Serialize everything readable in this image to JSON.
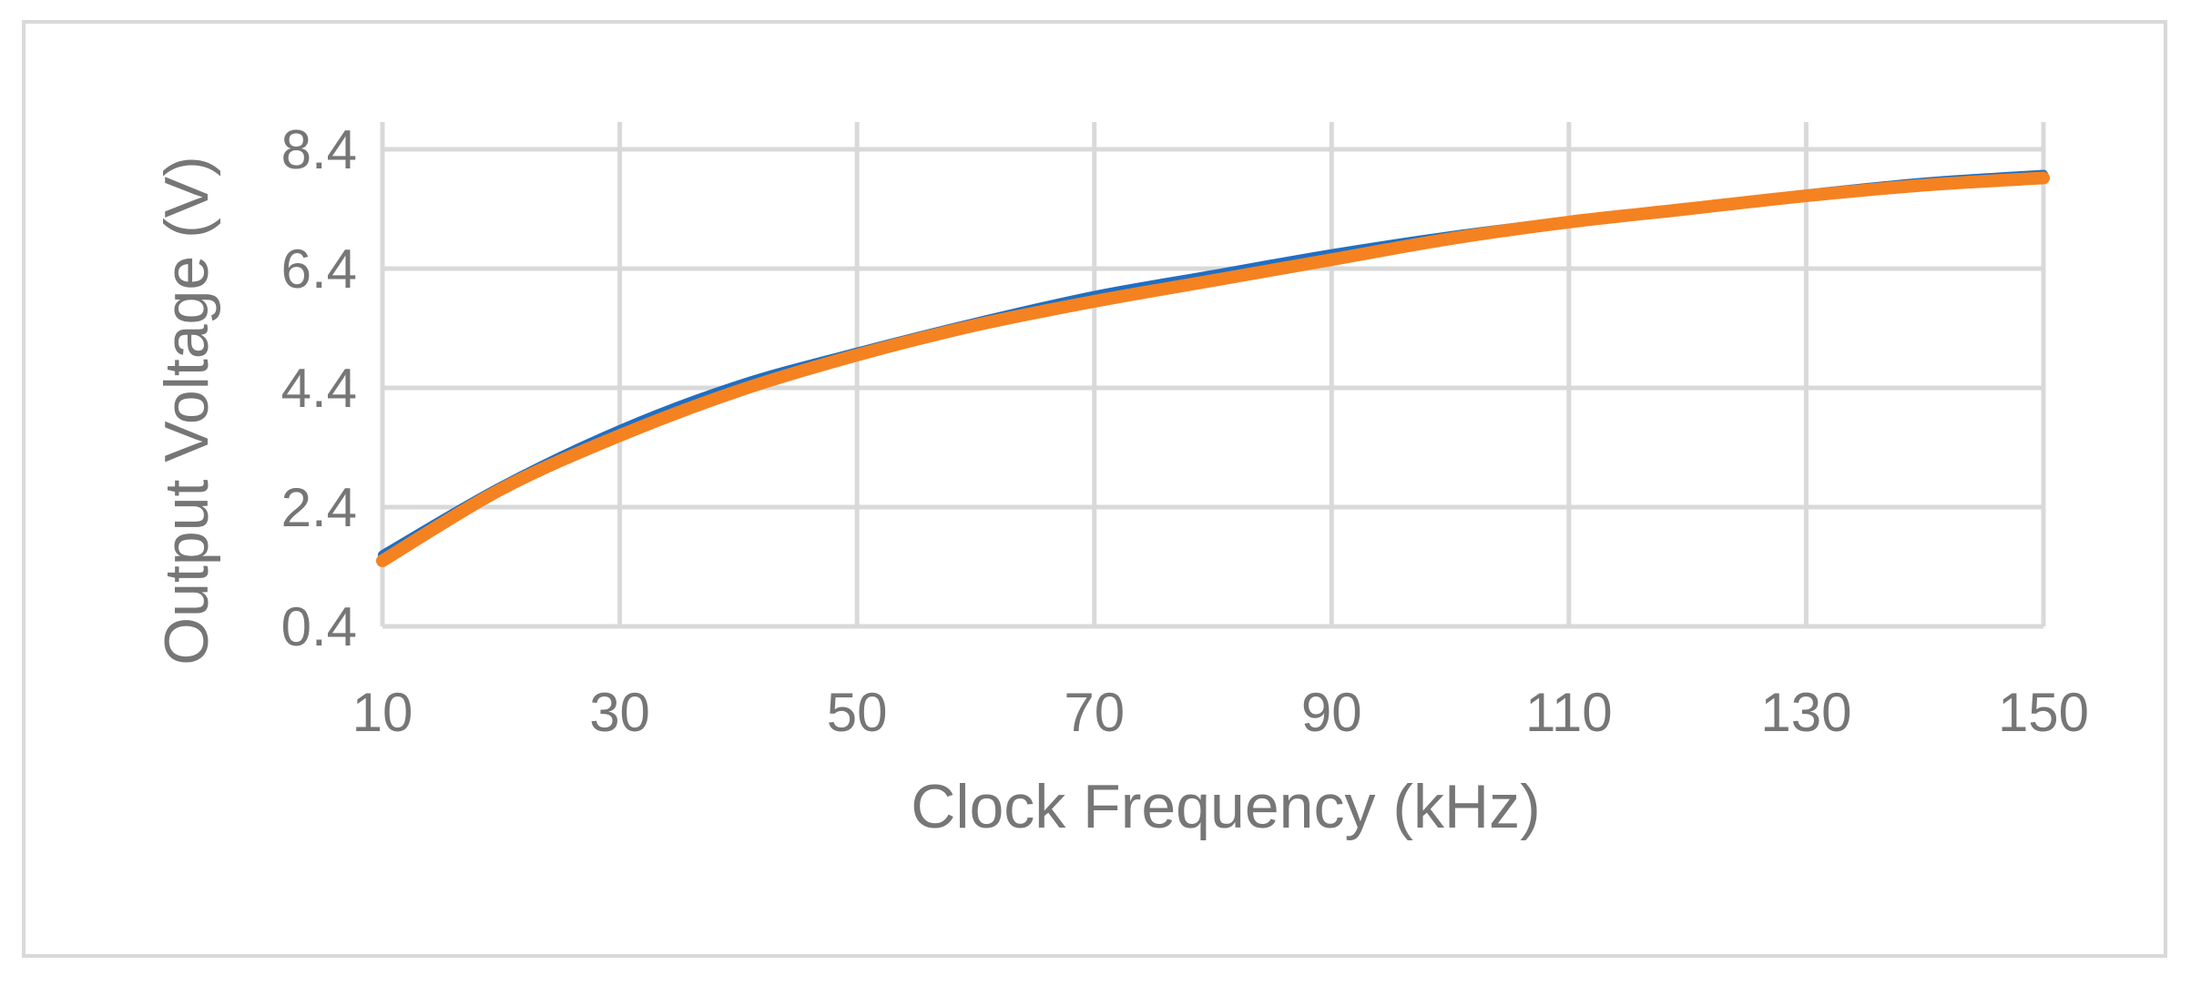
{
  "chart_data": {
    "type": "line",
    "title": "",
    "xlabel": "Clock Frequency (kHz)",
    "ylabel": "Output Voltage (V)",
    "xlim": [
      10,
      150
    ],
    "ylim": [
      0.4,
      8.4
    ],
    "x_ticks": [
      "10",
      "30",
      "50",
      "70",
      "90",
      "110",
      "130",
      "150"
    ],
    "y_ticks": [
      "0.4",
      "2.4",
      "4.4",
      "6.4",
      "8.4"
    ],
    "x_tick_values": [
      10,
      30,
      50,
      70,
      90,
      110,
      130,
      150
    ],
    "y_tick_values": [
      0.4,
      2.4,
      4.4,
      6.4,
      8.4
    ],
    "grid": true,
    "legend": "none",
    "x": [
      10,
      20,
      30,
      40,
      50,
      60,
      70,
      80,
      90,
      100,
      110,
      120,
      130,
      140,
      150
    ],
    "series": [
      {
        "color": "#1f6fc5",
        "values": [
          1.6,
          2.75,
          3.7,
          4.45,
          5.0,
          5.5,
          5.95,
          6.3,
          6.65,
          6.95,
          7.2,
          7.42,
          7.65,
          7.85,
          7.98
        ]
      },
      {
        "color": "#f58220",
        "values": [
          1.5,
          2.7,
          3.6,
          4.35,
          4.95,
          5.45,
          5.85,
          6.2,
          6.55,
          6.9,
          7.18,
          7.4,
          7.62,
          7.8,
          7.92
        ]
      }
    ]
  }
}
